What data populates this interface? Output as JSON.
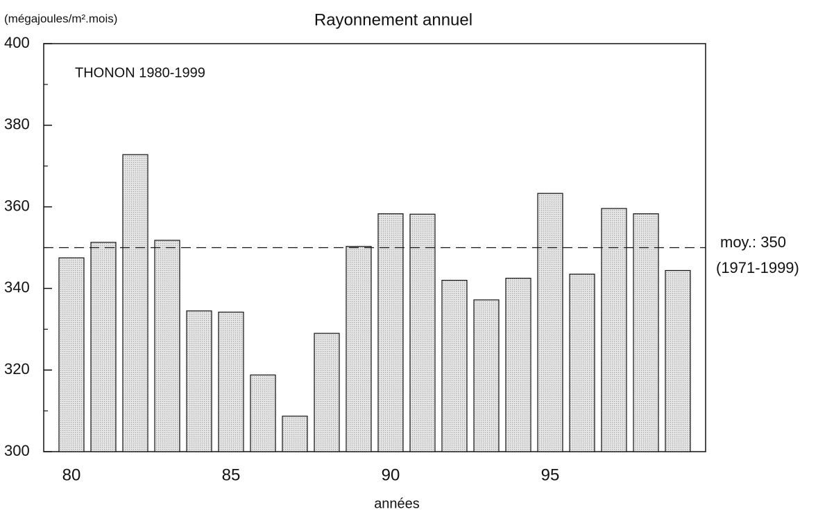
{
  "chart_data": {
    "type": "bar",
    "title": "Rayonnement annuel",
    "y_label": "(mégajoules/m².mois)",
    "x_label": "années",
    "annotation": "THONON 1980-1999",
    "categories": [
      "80",
      null,
      null,
      null,
      null,
      "85",
      null,
      null,
      null,
      null,
      "90",
      null,
      null,
      null,
      null,
      "95",
      null,
      null,
      null,
      null
    ],
    "values": [
      347.5,
      351.3,
      372.8,
      351.8,
      334.5,
      334.2,
      318.8,
      308.7,
      329,
      350.3,
      358.3,
      358.2,
      342,
      337.2,
      342.5,
      363.3,
      343.5,
      359.6,
      358.3,
      344.4
    ],
    "color": "#a0a0a0",
    "ylim": [
      300,
      400
    ],
    "yticks": [
      300,
      320,
      340,
      360,
      380,
      400
    ],
    "minor_yticks": [
      310,
      330,
      350,
      370,
      390
    ],
    "reference_line": {
      "value": 350,
      "label": "moy.: 350",
      "period": "(1971-1999)"
    }
  }
}
